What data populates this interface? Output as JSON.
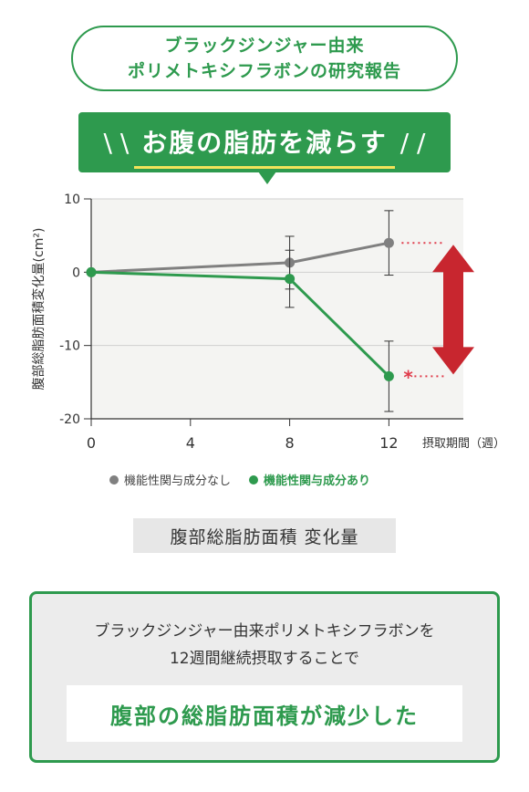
{
  "header": {
    "pill_line1": "ブラックジンジャー由来",
    "pill_line2": "ポリメトキシフラボンの研究報告",
    "banner_title": "お腹の脂肪を減らす"
  },
  "chart_data": {
    "type": "line",
    "ylabel": "腹部総脂肪面積変化量(cm²)",
    "xlabel": "摂取期間（週）",
    "x": [
      0,
      8,
      12
    ],
    "xticks": [
      "0",
      "4",
      "8",
      "12"
    ],
    "xtick_values": [
      0,
      4,
      8,
      12
    ],
    "yticks": [
      "10",
      "0",
      "-10",
      "-20"
    ],
    "ytick_values": [
      10,
      0,
      -10,
      -20
    ],
    "ylim": [
      -20,
      10
    ],
    "xlim": [
      0,
      15
    ],
    "grid": true,
    "series": [
      {
        "name": "機能性関与成分なし",
        "color": "#808080",
        "values": [
          0,
          1.3,
          4.0
        ],
        "err": [
          0,
          3.6,
          4.4
        ]
      },
      {
        "name": "機能性関与成分あり",
        "color": "#2e9a4e",
        "values": [
          0,
          -0.9,
          -14.2
        ],
        "err": [
          0,
          3.9,
          4.8
        ]
      }
    ],
    "significance_mark": "*",
    "legend_position": "bottom"
  },
  "caption": "腹部総脂肪面積 変化量",
  "summary": {
    "line1": "ブラックジンジャー由来ポリメトキシフラボンを",
    "line2": "12週間継続摂取することで",
    "conclusion": "腹部の総脂肪面積が減少した"
  }
}
